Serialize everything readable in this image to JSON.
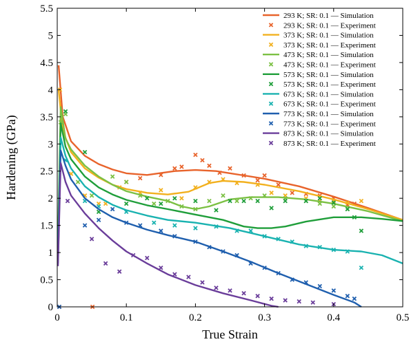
{
  "chart_data": {
    "type": "line",
    "xlabel": "True Strain",
    "ylabel": "Hardening (GPa)",
    "xlim": [
      0,
      0.5
    ],
    "ylim": [
      0,
      5.5
    ],
    "xticks": [
      0,
      0.1,
      0.2,
      0.3,
      0.4,
      0.5
    ],
    "xtick_labels": [
      "0",
      "0.1",
      "0.2",
      "0.3",
      "0.4",
      "0.5"
    ],
    "yticks": [
      0,
      0.5,
      1,
      1.5,
      2,
      2.5,
      3,
      3.5,
      4,
      4.5,
      5,
      5.5
    ],
    "ytick_labels": [
      "0",
      "0.5",
      "1",
      "1.5",
      "2",
      "2.5",
      "3",
      "3.5",
      "4",
      "4.5",
      "5",
      "5.5"
    ],
    "grid": false,
    "legend_position": "top-right",
    "series": [
      {
        "name": "293 K; SR: 0.1 — Simulation",
        "kind": "line",
        "color": "#e8632b",
        "points": [
          [
            0.002,
            4.45
          ],
          [
            0.008,
            3.5
          ],
          [
            0.02,
            3.05
          ],
          [
            0.04,
            2.78
          ],
          [
            0.06,
            2.63
          ],
          [
            0.08,
            2.53
          ],
          [
            0.1,
            2.46
          ],
          [
            0.13,
            2.43
          ],
          [
            0.17,
            2.5
          ],
          [
            0.2,
            2.52
          ],
          [
            0.23,
            2.5
          ],
          [
            0.27,
            2.42
          ],
          [
            0.3,
            2.36
          ],
          [
            0.35,
            2.22
          ],
          [
            0.4,
            2.03
          ],
          [
            0.45,
            1.82
          ],
          [
            0.5,
            1.6
          ]
        ]
      },
      {
        "name": "293 K; SR: 0.1 — Experiment",
        "kind": "scatter",
        "color": "#e8632b",
        "points": [
          [
            0.003,
            0
          ],
          [
            0.051,
            0
          ],
          [
            0.1,
            2.3
          ],
          [
            0.12,
            2.37
          ],
          [
            0.15,
            2.43
          ],
          [
            0.17,
            2.55
          ],
          [
            0.18,
            2.58
          ],
          [
            0.2,
            2.8
          ],
          [
            0.21,
            2.7
          ],
          [
            0.22,
            2.6
          ],
          [
            0.235,
            2.47
          ],
          [
            0.25,
            2.55
          ],
          [
            0.27,
            2.42
          ],
          [
            0.29,
            2.33
          ],
          [
            0.3,
            2.42
          ],
          [
            0.32,
            2.25
          ],
          [
            0.34,
            2.1
          ],
          [
            0.36,
            2.08
          ],
          [
            0.38,
            2.05
          ],
          [
            0.4,
            2.0
          ],
          [
            0.42,
            1.88
          ],
          [
            0.43,
            1.9
          ]
        ]
      },
      {
        "name": "373 K; SR: 0.1 — Simulation",
        "kind": "line",
        "color": "#f2b01e",
        "points": [
          [
            0.002,
            4.0
          ],
          [
            0.008,
            3.25
          ],
          [
            0.02,
            2.85
          ],
          [
            0.04,
            2.55
          ],
          [
            0.06,
            2.38
          ],
          [
            0.08,
            2.25
          ],
          [
            0.1,
            2.17
          ],
          [
            0.13,
            2.1
          ],
          [
            0.16,
            2.07
          ],
          [
            0.19,
            2.12
          ],
          [
            0.22,
            2.28
          ],
          [
            0.24,
            2.32
          ],
          [
            0.27,
            2.3
          ],
          [
            0.3,
            2.25
          ],
          [
            0.35,
            2.13
          ],
          [
            0.4,
            1.98
          ],
          [
            0.45,
            1.8
          ],
          [
            0.5,
            1.6
          ]
        ]
      },
      {
        "name": "373 K; SR: 0.1 — Experiment",
        "kind": "scatter",
        "color": "#f2b01e",
        "points": [
          [
            0.004,
            4.0
          ],
          [
            0.02,
            2.45
          ],
          [
            0.04,
            2.05
          ],
          [
            0.06,
            1.9
          ],
          [
            0.07,
            1.9
          ],
          [
            0.09,
            2.2
          ],
          [
            0.12,
            2.1
          ],
          [
            0.15,
            2.15
          ],
          [
            0.18,
            2.0
          ],
          [
            0.2,
            2.2
          ],
          [
            0.22,
            2.3
          ],
          [
            0.24,
            2.35
          ],
          [
            0.26,
            2.28
          ],
          [
            0.29,
            2.25
          ],
          [
            0.31,
            2.1
          ],
          [
            0.33,
            2.05
          ],
          [
            0.36,
            2.0
          ],
          [
            0.38,
            1.95
          ],
          [
            0.4,
            1.95
          ],
          [
            0.42,
            1.92
          ],
          [
            0.44,
            1.95
          ]
        ]
      },
      {
        "name": "473 K; SR: 0.1 — Simulation",
        "kind": "line",
        "color": "#7bc043",
        "points": [
          [
            0.001,
            1.2
          ],
          [
            0.005,
            3.68
          ],
          [
            0.012,
            3.1
          ],
          [
            0.02,
            2.9
          ],
          [
            0.04,
            2.6
          ],
          [
            0.06,
            2.4
          ],
          [
            0.08,
            2.25
          ],
          [
            0.1,
            2.13
          ],
          [
            0.13,
            2.03
          ],
          [
            0.16,
            1.95
          ],
          [
            0.18,
            1.85
          ],
          [
            0.2,
            1.8
          ],
          [
            0.22,
            1.85
          ],
          [
            0.25,
            1.98
          ],
          [
            0.28,
            2.02
          ],
          [
            0.32,
            2.02
          ],
          [
            0.36,
            1.98
          ],
          [
            0.4,
            1.9
          ],
          [
            0.45,
            1.76
          ],
          [
            0.5,
            1.58
          ]
        ]
      },
      {
        "name": "473 K; SR: 0.1 — Experiment",
        "kind": "scatter",
        "color": "#7bc043",
        "points": [
          [
            0.005,
            3.4
          ],
          [
            0.012,
            3.55
          ],
          [
            0.03,
            2.3
          ],
          [
            0.05,
            2.05
          ],
          [
            0.08,
            2.4
          ],
          [
            0.1,
            2.3
          ],
          [
            0.12,
            2.05
          ],
          [
            0.14,
            1.9
          ],
          [
            0.16,
            1.95
          ],
          [
            0.18,
            1.85
          ],
          [
            0.2,
            1.8
          ],
          [
            0.22,
            1.95
          ],
          [
            0.24,
            2.05
          ],
          [
            0.26,
            1.95
          ],
          [
            0.28,
            2.0
          ],
          [
            0.3,
            2.05
          ],
          [
            0.33,
            2.0
          ],
          [
            0.36,
            1.95
          ],
          [
            0.38,
            1.9
          ],
          [
            0.4,
            1.85
          ],
          [
            0.42,
            1.8
          ]
        ]
      },
      {
        "name": "573 K; SR: 0.1 — Simulation",
        "kind": "line",
        "color": "#1f9e3a",
        "points": [
          [
            0.001,
            1.0
          ],
          [
            0.005,
            3.38
          ],
          [
            0.012,
            2.95
          ],
          [
            0.02,
            2.72
          ],
          [
            0.04,
            2.4
          ],
          [
            0.06,
            2.2
          ],
          [
            0.08,
            2.07
          ],
          [
            0.1,
            1.97
          ],
          [
            0.13,
            1.87
          ],
          [
            0.16,
            1.8
          ],
          [
            0.2,
            1.7
          ],
          [
            0.24,
            1.6
          ],
          [
            0.27,
            1.48
          ],
          [
            0.29,
            1.45
          ],
          [
            0.31,
            1.45
          ],
          [
            0.33,
            1.48
          ],
          [
            0.36,
            1.57
          ],
          [
            0.4,
            1.65
          ],
          [
            0.44,
            1.65
          ],
          [
            0.47,
            1.62
          ],
          [
            0.5,
            1.58
          ]
        ]
      },
      {
        "name": "573 K; SR: 0.1 — Experiment",
        "kind": "scatter",
        "color": "#1f9e3a",
        "points": [
          [
            0.012,
            3.6
          ],
          [
            0.04,
            2.85
          ],
          [
            0.06,
            1.75
          ],
          [
            0.1,
            1.9
          ],
          [
            0.13,
            2.0
          ],
          [
            0.15,
            1.9
          ],
          [
            0.17,
            2.0
          ],
          [
            0.2,
            1.95
          ],
          [
            0.23,
            1.78
          ],
          [
            0.25,
            1.95
          ],
          [
            0.27,
            1.95
          ],
          [
            0.29,
            1.95
          ],
          [
            0.31,
            1.82
          ],
          [
            0.33,
            1.95
          ],
          [
            0.36,
            1.95
          ],
          [
            0.38,
            2.0
          ],
          [
            0.4,
            1.92
          ],
          [
            0.42,
            1.8
          ],
          [
            0.43,
            1.65
          ],
          [
            0.44,
            1.4
          ]
        ]
      },
      {
        "name": "673 K; SR: 0.1 — Simulation",
        "kind": "line",
        "color": "#19b2b0",
        "points": [
          [
            0.001,
            0.9
          ],
          [
            0.005,
            3.12
          ],
          [
            0.012,
            2.78
          ],
          [
            0.02,
            2.55
          ],
          [
            0.04,
            2.22
          ],
          [
            0.06,
            2.02
          ],
          [
            0.08,
            1.88
          ],
          [
            0.1,
            1.78
          ],
          [
            0.13,
            1.68
          ],
          [
            0.16,
            1.6
          ],
          [
            0.2,
            1.55
          ],
          [
            0.25,
            1.45
          ],
          [
            0.3,
            1.3
          ],
          [
            0.35,
            1.15
          ],
          [
            0.4,
            1.05
          ],
          [
            0.44,
            1.02
          ],
          [
            0.47,
            0.95
          ],
          [
            0.5,
            0.8
          ]
        ]
      },
      {
        "name": "673 K; SR: 0.1 — Experiment",
        "kind": "scatter",
        "color": "#19b2b0",
        "points": [
          [
            0.012,
            2.7
          ],
          [
            0.04,
            1.95
          ],
          [
            0.06,
            1.85
          ],
          [
            0.1,
            1.75
          ],
          [
            0.14,
            1.55
          ],
          [
            0.17,
            1.5
          ],
          [
            0.2,
            1.45
          ],
          [
            0.23,
            1.48
          ],
          [
            0.26,
            1.4
          ],
          [
            0.28,
            1.4
          ],
          [
            0.3,
            1.3
          ],
          [
            0.32,
            1.25
          ],
          [
            0.34,
            1.2
          ],
          [
            0.36,
            1.12
          ],
          [
            0.38,
            1.1
          ],
          [
            0.4,
            1.05
          ],
          [
            0.42,
            1.02
          ],
          [
            0.44,
            0.72
          ]
        ]
      },
      {
        "name": "773 K; SR: 0.1 — Simulation",
        "kind": "line",
        "color": "#1f5fae",
        "points": [
          [
            0.001,
            0.8
          ],
          [
            0.005,
            2.88
          ],
          [
            0.012,
            2.6
          ],
          [
            0.02,
            2.35
          ],
          [
            0.04,
            2.0
          ],
          [
            0.06,
            1.8
          ],
          [
            0.08,
            1.65
          ],
          [
            0.1,
            1.55
          ],
          [
            0.13,
            1.42
          ],
          [
            0.16,
            1.32
          ],
          [
            0.2,
            1.2
          ],
          [
            0.24,
            1.02
          ],
          [
            0.28,
            0.83
          ],
          [
            0.32,
            0.62
          ],
          [
            0.36,
            0.42
          ],
          [
            0.4,
            0.22
          ],
          [
            0.43,
            0.08
          ],
          [
            0.44,
            0.0
          ]
        ]
      },
      {
        "name": "773 K; SR: 0.1 — Experiment",
        "kind": "scatter",
        "color": "#1f5fae",
        "points": [
          [
            0.003,
            0
          ],
          [
            0.04,
            1.5
          ],
          [
            0.06,
            1.6
          ],
          [
            0.08,
            1.8
          ],
          [
            0.1,
            1.55
          ],
          [
            0.12,
            1.5
          ],
          [
            0.15,
            1.4
          ],
          [
            0.17,
            1.3
          ],
          [
            0.2,
            1.2
          ],
          [
            0.22,
            1.1
          ],
          [
            0.24,
            1.02
          ],
          [
            0.26,
            0.95
          ],
          [
            0.28,
            0.8
          ],
          [
            0.3,
            0.72
          ],
          [
            0.32,
            0.62
          ],
          [
            0.34,
            0.5
          ],
          [
            0.36,
            0.45
          ],
          [
            0.38,
            0.38
          ],
          [
            0.4,
            0.3
          ],
          [
            0.42,
            0.2
          ],
          [
            0.43,
            0.15
          ]
        ]
      },
      {
        "name": "873 K; SR: 0.1 — Simulation",
        "kind": "line",
        "color": "#6a3d9a",
        "points": [
          [
            0.001,
            0.75
          ],
          [
            0.005,
            2.65
          ],
          [
            0.012,
            2.3
          ],
          [
            0.02,
            2.05
          ],
          [
            0.04,
            1.72
          ],
          [
            0.06,
            1.45
          ],
          [
            0.08,
            1.22
          ],
          [
            0.1,
            1.02
          ],
          [
            0.13,
            0.8
          ],
          [
            0.16,
            0.6
          ],
          [
            0.2,
            0.4
          ],
          [
            0.24,
            0.25
          ],
          [
            0.28,
            0.12
          ],
          [
            0.31,
            0.02
          ],
          [
            0.32,
            0.0
          ]
        ]
      },
      {
        "name": "873 K; SR: 0.1 — Experiment",
        "kind": "scatter",
        "color": "#6a3d9a",
        "points": [
          [
            0.015,
            1.95
          ],
          [
            0.05,
            1.25
          ],
          [
            0.07,
            0.8
          ],
          [
            0.09,
            0.65
          ],
          [
            0.11,
            0.95
          ],
          [
            0.13,
            0.9
          ],
          [
            0.15,
            0.72
          ],
          [
            0.17,
            0.6
          ],
          [
            0.19,
            0.55
          ],
          [
            0.21,
            0.45
          ],
          [
            0.23,
            0.35
          ],
          [
            0.25,
            0.3
          ],
          [
            0.27,
            0.25
          ],
          [
            0.29,
            0.2
          ],
          [
            0.31,
            0.15
          ],
          [
            0.33,
            0.12
          ],
          [
            0.35,
            0.1
          ],
          [
            0.37,
            0.08
          ],
          [
            0.4,
            0.05
          ]
        ]
      }
    ]
  }
}
